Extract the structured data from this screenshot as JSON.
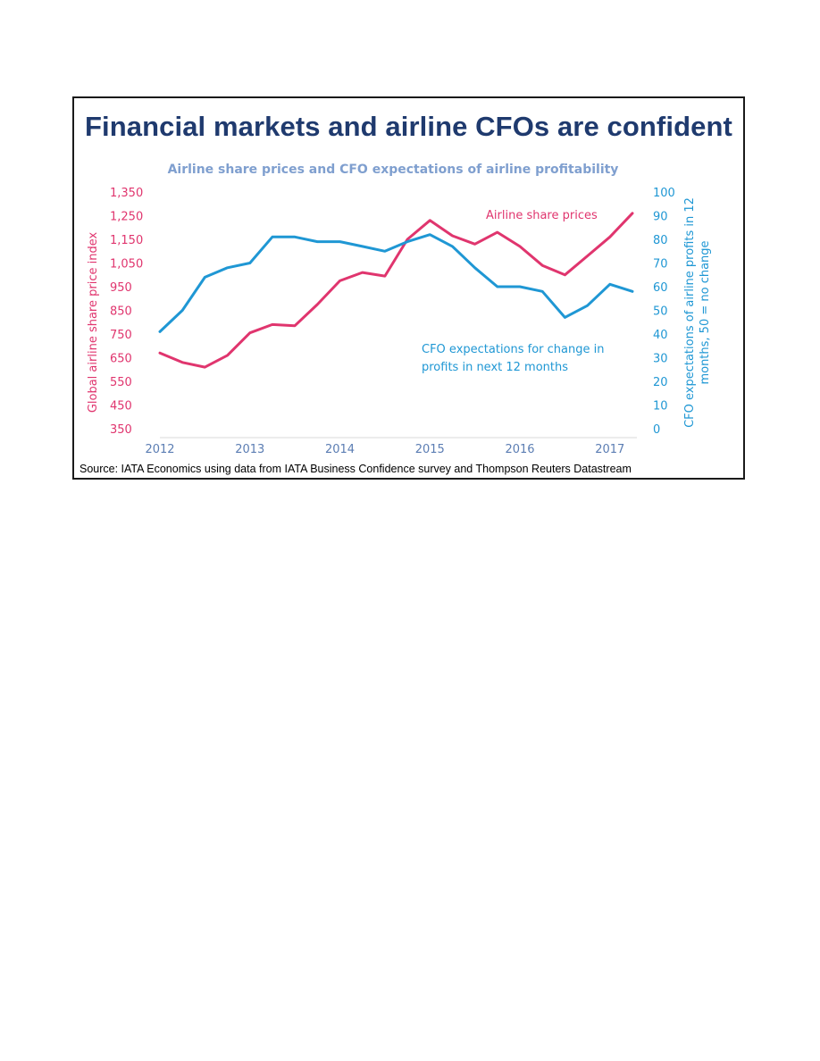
{
  "headline": "Financial markets and airline CFOs are confident",
  "source": "Source: IATA Economics using data from IATA Business Confidence survey and Thompson Reuters Datastream",
  "chart_data": {
    "type": "line",
    "title": "Airline share prices and CFO expectations of airline profitability",
    "xlabel": "",
    "x_ticks": [
      "2012",
      "2013",
      "2014",
      "2015",
      "2016",
      "2017"
    ],
    "xlim": [
      2012.0,
      2017.3
    ],
    "y_left": {
      "label": "Global airline share price index",
      "ticks": [
        "1,350",
        "1,250",
        "1,150",
        "1,050",
        "950",
        "850",
        "750",
        "650",
        "550",
        "450",
        "350"
      ],
      "lim": [
        350,
        1350
      ]
    },
    "y_right": {
      "label_line1": "CFO expectations of airline profits in 12",
      "label_line2": "months, 50 = no change",
      "ticks": [
        "100",
        "90",
        "80",
        "70",
        "60",
        "50",
        "40",
        "30",
        "20",
        "10",
        "0"
      ],
      "lim": [
        0,
        100
      ]
    },
    "grid": false,
    "series": [
      {
        "name": "Airline share prices",
        "axis": "left",
        "color": "#e0356e",
        "x": [
          2012.0,
          2012.25,
          2012.5,
          2012.75,
          2013.0,
          2013.25,
          2013.5,
          2013.75,
          2014.0,
          2014.25,
          2014.5,
          2014.75,
          2015.0,
          2015.25,
          2015.5,
          2015.75,
          2016.0,
          2016.25,
          2016.5,
          2016.75,
          2017.0,
          2017.25
        ],
        "values": [
          670,
          630,
          610,
          660,
          755,
          790,
          785,
          875,
          975,
          1010,
          995,
          1150,
          1230,
          1165,
          1130,
          1180,
          1120,
          1040,
          1000,
          1080,
          1160,
          1260
        ]
      },
      {
        "name": "CFO expectations for change in profits in next 12 months",
        "axis": "right",
        "color": "#1f97d4",
        "x": [
          2012.0,
          2012.25,
          2012.5,
          2012.75,
          2013.0,
          2013.25,
          2013.5,
          2013.75,
          2014.0,
          2014.25,
          2014.5,
          2014.75,
          2015.0,
          2015.25,
          2015.5,
          2015.75,
          2016.0,
          2016.25,
          2016.5,
          2016.75,
          2017.0,
          2017.25
        ],
        "values": [
          41,
          50,
          64,
          68,
          70,
          81,
          81,
          79,
          79,
          77,
          75,
          79,
          82,
          77,
          68,
          60,
          60,
          58,
          47,
          52,
          61,
          58
        ]
      }
    ],
    "annotations": [
      {
        "text": "Airline share prices",
        "series": 0
      },
      {
        "text_line1": "CFO expectations for change in",
        "text_line2": "profits in next 12 months",
        "series": 1
      }
    ]
  }
}
